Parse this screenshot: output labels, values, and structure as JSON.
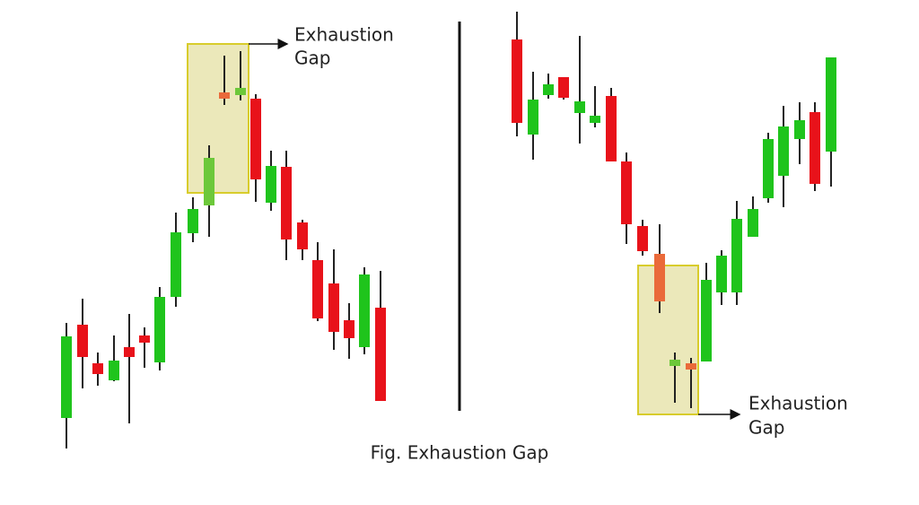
{
  "left_label": {
    "lines": [
      "Exhaustion",
      "Gap"
    ]
  },
  "right_label": {
    "lines": [
      "Exhaustion",
      "Gap"
    ]
  },
  "caption": "Fig. Exhaustion Gap"
}
